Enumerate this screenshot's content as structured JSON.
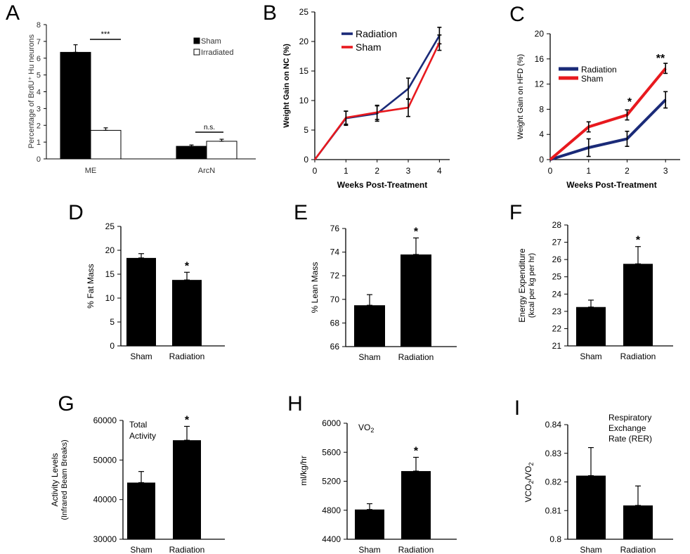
{
  "chart_data": [
    {
      "panel": "A",
      "type": "bar",
      "ylabel": "Percentage of BrdU⁺ Hu neurons",
      "ylim": [
        0,
        8
      ],
      "yticks": [
        "0",
        "1",
        "2",
        "3",
        "4",
        "5",
        "6",
        "7",
        "8"
      ],
      "categories": [
        "ME",
        "ArcN"
      ],
      "series": [
        {
          "name": "Sham",
          "color": "#000000",
          "values": [
            6.35,
            0.75
          ],
          "errors": [
            0.45,
            0.08
          ]
        },
        {
          "name": "Irradiated",
          "color": "#ffffff",
          "values": [
            1.7,
            1.05
          ],
          "errors": [
            0.15,
            0.12
          ]
        }
      ],
      "legend": "top-right",
      "annotations": [
        "***",
        "n.s."
      ]
    },
    {
      "panel": "B",
      "type": "line",
      "xlabel": "Weeks Post-Treatment",
      "ylabel": "Weight Gain on NC (%)",
      "x": [
        0,
        1,
        2,
        3,
        4
      ],
      "ylim": [
        0,
        25
      ],
      "yticks": [
        "0",
        "5",
        "10",
        "15",
        "20",
        "25"
      ],
      "xticks": [
        "0",
        "1",
        "2",
        "3",
        "4"
      ],
      "series": [
        {
          "name": "Radiation",
          "color": "#1a2a78",
          "values": [
            0,
            7,
            7.8,
            12,
            21
          ],
          "errors": [
            0,
            1.2,
            1.3,
            1.8,
            1.4
          ]
        },
        {
          "name": "Sham",
          "color": "#e8191e",
          "values": [
            0,
            7.1,
            8,
            8.8,
            19.8
          ],
          "errors": [
            0,
            1.1,
            1.2,
            1.5,
            1.3
          ]
        }
      ],
      "legend": "top-left"
    },
    {
      "panel": "C",
      "type": "line",
      "xlabel": "Weeks Post-Treatment",
      "ylabel": "Weight Gain on HFD (%)",
      "x": [
        0,
        1,
        2,
        3
      ],
      "ylim": [
        0,
        20
      ],
      "yticks": [
        "0",
        "4",
        "8",
        "12",
        "16",
        "20"
      ],
      "xticks": [
        "0",
        "1",
        "2",
        "3"
      ],
      "series": [
        {
          "name": "Radiation",
          "color": "#1a2a78",
          "values": [
            0,
            1.9,
            3.3,
            9.5
          ],
          "errors": [
            0,
            1.4,
            1.2,
            1.3
          ]
        },
        {
          "name": "Sham",
          "color": "#e8191e",
          "values": [
            0,
            5.2,
            7.1,
            14.5
          ],
          "errors": [
            0,
            0.8,
            0.8,
            0.8
          ]
        }
      ],
      "legend": "top-left",
      "annotations": [
        "*",
        "**"
      ]
    },
    {
      "panel": "D",
      "type": "bar",
      "ylabel": "% Fat Mass",
      "categories": [
        "Sham",
        "Radiation"
      ],
      "values": [
        18.4,
        13.8
      ],
      "errors": [
        0.9,
        1.6
      ],
      "ylim": [
        0,
        25
      ],
      "yticks": [
        "0",
        "5",
        "10",
        "15",
        "20",
        "25"
      ],
      "annotations": [
        "*"
      ]
    },
    {
      "panel": "E",
      "type": "bar",
      "ylabel": "% Lean Mass",
      "categories": [
        "Sham",
        "Radiation"
      ],
      "values": [
        69.5,
        73.8
      ],
      "errors": [
        0.9,
        1.4
      ],
      "ylim": [
        66,
        76
      ],
      "yticks": [
        "66",
        "68",
        "70",
        "72",
        "74",
        "76"
      ],
      "annotations": [
        "*"
      ]
    },
    {
      "panel": "F",
      "type": "bar",
      "ylabel": "Energy Expenditure",
      "ylabel2": "(kcal per kg per hr)",
      "categories": [
        "Sham",
        "Radiation"
      ],
      "values": [
        23.25,
        25.75
      ],
      "errors": [
        0.4,
        1.0
      ],
      "ylim": [
        21,
        28
      ],
      "yticks": [
        "21",
        "22",
        "23",
        "24",
        "25",
        "26",
        "27",
        "28"
      ],
      "annotations": [
        "*"
      ]
    },
    {
      "panel": "G",
      "type": "bar",
      "title": "Total Activity",
      "ylabel": "Activity Levels",
      "ylabel2": "(Infrared Beam Breaks)",
      "categories": [
        "Sham",
        "Radiation"
      ],
      "values": [
        44300,
        55000
      ],
      "errors": [
        2800,
        3500
      ],
      "ylim": [
        30000,
        60000
      ],
      "yticks": [
        "30000",
        "40000",
        "50000",
        "60000"
      ],
      "annotations": [
        "*"
      ]
    },
    {
      "panel": "H",
      "type": "bar",
      "title": "VO2",
      "ylabel": "ml/kg/hr",
      "categories": [
        "Sham",
        "Radiation"
      ],
      "values": [
        4810,
        5340
      ],
      "errors": [
        80,
        190
      ],
      "ylim": [
        4400,
        6000
      ],
      "yticks": [
        "4400",
        "4800",
        "5200",
        "5600",
        "6000"
      ],
      "annotations": [
        "*"
      ]
    },
    {
      "panel": "I",
      "type": "bar",
      "title": "Respiratory Exchange Rate (RER)",
      "ylabel": "VCO2/VO2",
      "categories": [
        "Sham",
        "Radiation"
      ],
      "values": [
        0.8222,
        0.8118
      ],
      "errors": [
        0.0098,
        0.0068
      ],
      "ylim": [
        0.8,
        0.84
      ],
      "yticks": [
        "0.8",
        "0.81",
        "0.82",
        "0.83",
        "0.84"
      ]
    }
  ]
}
